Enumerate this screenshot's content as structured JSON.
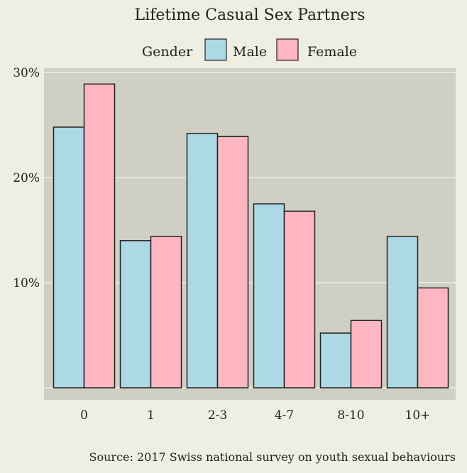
{
  "chart_data": {
    "type": "bar",
    "title": "Lifetime Casual Sex Partners",
    "legend_title": "Gender",
    "legend_position": "top",
    "categories": [
      "0",
      "1",
      "2-3",
      "4-7",
      "8-10",
      "10+"
    ],
    "series": [
      {
        "name": "Male",
        "color": "#add8e6",
        "values": [
          24.8,
          14.0,
          24.2,
          17.5,
          5.2,
          14.4
        ]
      },
      {
        "name": "Female",
        "color": "#ffb6c1",
        "values": [
          28.9,
          14.4,
          23.9,
          16.8,
          6.4,
          9.5
        ]
      }
    ],
    "yticks": [
      10,
      20,
      30
    ],
    "ytick_labels": [
      "10%",
      "20%",
      "30%"
    ],
    "ylim": [
      0,
      30.4
    ],
    "xlabel": "",
    "ylabel": "",
    "grid": true,
    "panel_color": "#cfcfc3",
    "background_color": "#efeee2",
    "caption": "Source: 2017 Swiss national survey on youth sexual behaviours"
  }
}
